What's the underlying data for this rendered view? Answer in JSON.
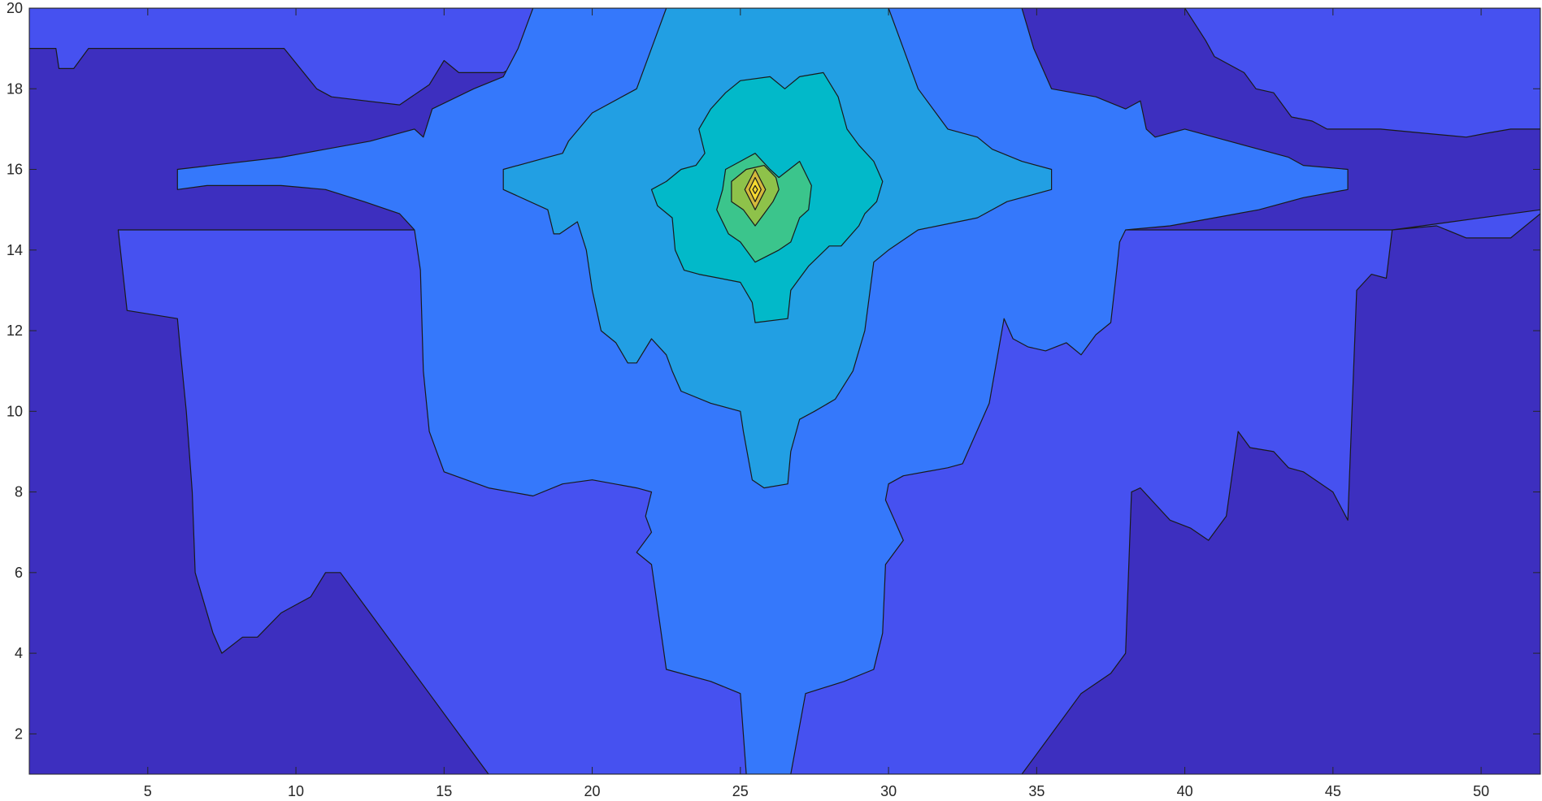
{
  "chart_data": {
    "type": "contour",
    "title": "",
    "xlabel": "",
    "ylabel": "",
    "xlim": [
      1,
      52
    ],
    "ylim": [
      1,
      20
    ],
    "x_ticks": [
      5,
      10,
      15,
      20,
      25,
      30,
      35,
      40,
      45,
      50
    ],
    "y_ticks": [
      2,
      4,
      6,
      8,
      10,
      12,
      14,
      16,
      18,
      20
    ],
    "x_tick_labels": [
      "5",
      "10",
      "15",
      "20",
      "25",
      "30",
      "35",
      "40",
      "45",
      "50"
    ],
    "y_tick_labels": [
      "2",
      "4",
      "6",
      "8",
      "10",
      "12",
      "14",
      "16",
      "18",
      "20"
    ],
    "grid": false,
    "colormap": "parula",
    "peak": {
      "x": 25.5,
      "y": 15.5
    },
    "level_colors": [
      "#3d2fbf",
      "#4651f0",
      "#3578fb",
      "#229fe3",
      "#02b9c9",
      "#3bc58c",
      "#8ec24a",
      "#d3b83b",
      "#f6d930"
    ],
    "regions": [
      {
        "level": 0,
        "points": [
          [
            1,
            1
          ],
          [
            52,
            1
          ],
          [
            52,
            20
          ],
          [
            1,
            20
          ]
        ]
      },
      {
        "level": 1,
        "points": [
          [
            4,
            14.5
          ],
          [
            4.3,
            12.5
          ],
          [
            6,
            12.3
          ],
          [
            6.1,
            11.5
          ],
          [
            6.3,
            10
          ],
          [
            6.5,
            8
          ],
          [
            6.6,
            6
          ],
          [
            6.8,
            5.5
          ],
          [
            7.2,
            4.5
          ],
          [
            7.5,
            4
          ],
          [
            8.2,
            4.4
          ],
          [
            8.7,
            4.4
          ],
          [
            9.5,
            5
          ],
          [
            10,
            5.2
          ],
          [
            10.5,
            5.4
          ],
          [
            11,
            6
          ],
          [
            11.5,
            6
          ],
          [
            12.5,
            5
          ],
          [
            13.5,
            4
          ],
          [
            14.5,
            3
          ],
          [
            15.5,
            2
          ],
          [
            16.5,
            1
          ],
          [
            34.5,
            1
          ],
          [
            35.5,
            2
          ],
          [
            36.5,
            3
          ],
          [
            37.5,
            3.5
          ],
          [
            38,
            4
          ],
          [
            38.2,
            8
          ],
          [
            38.5,
            8.1
          ],
          [
            39.5,
            7.3
          ],
          [
            40.2,
            7.1
          ],
          [
            40.8,
            6.8
          ],
          [
            41.4,
            7.4
          ],
          [
            41.8,
            9.5
          ],
          [
            42.2,
            9.1
          ],
          [
            43,
            9
          ],
          [
            43.5,
            8.6
          ],
          [
            44,
            8.5
          ],
          [
            45,
            8
          ],
          [
            45.5,
            7.3
          ],
          [
            45.8,
            13
          ],
          [
            46.3,
            13.4
          ],
          [
            46.8,
            13.3
          ],
          [
            47,
            14.5
          ],
          [
            48.5,
            14.6
          ],
          [
            49.5,
            14.3
          ],
          [
            51,
            14.3
          ],
          [
            52,
            14.9
          ],
          [
            52,
            20
          ],
          [
            1,
            20
          ],
          [
            1,
            19
          ],
          [
            1.9,
            19
          ],
          [
            2,
            18.5
          ],
          [
            2.5,
            18.5
          ],
          [
            3,
            19
          ],
          [
            9.6,
            19
          ],
          [
            10.7,
            18
          ],
          [
            11.2,
            17.8
          ],
          [
            13.5,
            17.6
          ],
          [
            14.5,
            18.1
          ],
          [
            15,
            18.7
          ],
          [
            15.5,
            18.4
          ],
          [
            17,
            18.4
          ],
          [
            17.7,
            18.7
          ],
          [
            18,
            20
          ],
          [
            40,
            20
          ],
          [
            40.7,
            19.2
          ],
          [
            41,
            18.8
          ],
          [
            42,
            18.4
          ],
          [
            42.4,
            18
          ],
          [
            43,
            17.9
          ],
          [
            43.6,
            17.3
          ],
          [
            44.3,
            17.2
          ],
          [
            44.8,
            17
          ],
          [
            46.6,
            17
          ],
          [
            49.5,
            16.8
          ],
          [
            50.2,
            16.9
          ],
          [
            51,
            17
          ],
          [
            52,
            17
          ],
          [
            52,
            15
          ],
          [
            47,
            14.5
          ],
          [
            41,
            14.5
          ],
          [
            37.5,
            14.5
          ],
          [
            4,
            14.5
          ]
        ]
      },
      {
        "level": 2,
        "points": [
          [
            6,
            16
          ],
          [
            9.5,
            16.3
          ],
          [
            11,
            16.5
          ],
          [
            12.5,
            16.7
          ],
          [
            14,
            17
          ],
          [
            14.3,
            16.8
          ],
          [
            14.6,
            17.5
          ],
          [
            16,
            18
          ],
          [
            17,
            18.3
          ],
          [
            17.5,
            19
          ],
          [
            18,
            20
          ],
          [
            34.5,
            20
          ],
          [
            34.9,
            19
          ],
          [
            35.5,
            18
          ],
          [
            37,
            17.8
          ],
          [
            38,
            17.5
          ],
          [
            38.5,
            17.7
          ],
          [
            38.7,
            17
          ],
          [
            39,
            16.8
          ],
          [
            40,
            17
          ],
          [
            41.5,
            16.7
          ],
          [
            42.5,
            16.5
          ],
          [
            43.5,
            16.3
          ],
          [
            44,
            16.1
          ],
          [
            45.5,
            16
          ],
          [
            45.5,
            15.5
          ],
          [
            44,
            15.3
          ],
          [
            42.5,
            15
          ],
          [
            41,
            14.8
          ],
          [
            39.5,
            14.6
          ],
          [
            38,
            14.5
          ],
          [
            37.8,
            14.2
          ],
          [
            37.7,
            13.5
          ],
          [
            37.5,
            12.2
          ],
          [
            37,
            11.9
          ],
          [
            36.5,
            11.4
          ],
          [
            36,
            11.7
          ],
          [
            35.3,
            11.5
          ],
          [
            34.7,
            11.6
          ],
          [
            34.2,
            11.8
          ],
          [
            33.9,
            12.3
          ],
          [
            33.4,
            10.2
          ],
          [
            32.5,
            8.7
          ],
          [
            32,
            8.6
          ],
          [
            30.5,
            8.4
          ],
          [
            30,
            8.2
          ],
          [
            29.9,
            7.8
          ],
          [
            30.2,
            7.3
          ],
          [
            30.5,
            6.8
          ],
          [
            29.9,
            6.2
          ],
          [
            29.8,
            4.5
          ],
          [
            29.5,
            3.6
          ],
          [
            28.5,
            3.3
          ],
          [
            27.2,
            3
          ],
          [
            26.7,
            1
          ],
          [
            25.2,
            1
          ],
          [
            25,
            3
          ],
          [
            24,
            3.3
          ],
          [
            22.5,
            3.6
          ],
          [
            22,
            6.2
          ],
          [
            21.5,
            6.5
          ],
          [
            22,
            7
          ],
          [
            21.8,
            7.4
          ],
          [
            22,
            8
          ],
          [
            21.5,
            8.1
          ],
          [
            20,
            8.3
          ],
          [
            19,
            8.2
          ],
          [
            18,
            7.9
          ],
          [
            16.5,
            8.1
          ],
          [
            15,
            8.5
          ],
          [
            14.8,
            8.9
          ],
          [
            14.5,
            9.5
          ],
          [
            14.3,
            11
          ],
          [
            14.2,
            13.5
          ],
          [
            14,
            14.5
          ],
          [
            13.5,
            14.9
          ],
          [
            12.3,
            15.2
          ],
          [
            11,
            15.5
          ],
          [
            9.5,
            15.6
          ],
          [
            7,
            15.6
          ],
          [
            6,
            15.5
          ]
        ]
      },
      {
        "level": 3,
        "points": [
          [
            17,
            16
          ],
          [
            18.5,
            16.3
          ],
          [
            19,
            16.4
          ],
          [
            19.2,
            16.7
          ],
          [
            20,
            17.4
          ],
          [
            21.5,
            18
          ],
          [
            22,
            19
          ],
          [
            22.5,
            20
          ],
          [
            30,
            20
          ],
          [
            30.5,
            19
          ],
          [
            31,
            18
          ],
          [
            32,
            17
          ],
          [
            33,
            16.8
          ],
          [
            33.5,
            16.5
          ],
          [
            34.5,
            16.2
          ],
          [
            35.5,
            16
          ],
          [
            35.5,
            15.5
          ],
          [
            34,
            15.2
          ],
          [
            33,
            14.8
          ],
          [
            31,
            14.5
          ],
          [
            30,
            14
          ],
          [
            29.5,
            13.7
          ],
          [
            29.2,
            12
          ],
          [
            28.8,
            11
          ],
          [
            28.2,
            10.3
          ],
          [
            27.5,
            10
          ],
          [
            27,
            9.8
          ],
          [
            26.7,
            9
          ],
          [
            26.6,
            8.2
          ],
          [
            25.8,
            8.1
          ],
          [
            25.4,
            8.3
          ],
          [
            25.1,
            9.5
          ],
          [
            25,
            10
          ],
          [
            24,
            10.2
          ],
          [
            23,
            10.5
          ],
          [
            22.7,
            11
          ],
          [
            22.5,
            11.4
          ],
          [
            22,
            11.8
          ],
          [
            21.5,
            11.2
          ],
          [
            21.2,
            11.2
          ],
          [
            20.8,
            11.7
          ],
          [
            20.3,
            12
          ],
          [
            20,
            13
          ],
          [
            19.8,
            14
          ],
          [
            19.5,
            14.7
          ],
          [
            18.9,
            14.4
          ],
          [
            18.7,
            14.4
          ],
          [
            18.5,
            15
          ],
          [
            17,
            15.5
          ]
        ]
      },
      {
        "level": 4,
        "points": [
          [
            22.5,
            15.7
          ],
          [
            23,
            16
          ],
          [
            23.5,
            16.1
          ],
          [
            23.8,
            16.4
          ],
          [
            23.6,
            17
          ],
          [
            24,
            17.5
          ],
          [
            24.5,
            17.9
          ],
          [
            25,
            18.2
          ],
          [
            26,
            18.3
          ],
          [
            26.5,
            18
          ],
          [
            27,
            18.3
          ],
          [
            27.8,
            18.4
          ],
          [
            28.3,
            17.8
          ],
          [
            28.6,
            17
          ],
          [
            29,
            16.6
          ],
          [
            29.5,
            16.2
          ],
          [
            29.8,
            15.7
          ],
          [
            29.6,
            15.2
          ],
          [
            29.2,
            14.9
          ],
          [
            29,
            14.6
          ],
          [
            28.4,
            14.1
          ],
          [
            28,
            14.1
          ],
          [
            27.3,
            13.6
          ],
          [
            27,
            13.3
          ],
          [
            26.7,
            13
          ],
          [
            26.6,
            12.3
          ],
          [
            25.5,
            12.2
          ],
          [
            25.4,
            12.7
          ],
          [
            25,
            13.2
          ],
          [
            24.3,
            13.3
          ],
          [
            23.6,
            13.4
          ],
          [
            23.1,
            13.5
          ],
          [
            22.8,
            14
          ],
          [
            22.7,
            14.8
          ],
          [
            22.2,
            15.1
          ],
          [
            22,
            15.5
          ]
        ]
      },
      {
        "level": 5,
        "points": [
          [
            24.4,
            15.5
          ],
          [
            24.5,
            16
          ],
          [
            25,
            16.2
          ],
          [
            25.5,
            16.4
          ],
          [
            26,
            16
          ],
          [
            26.3,
            15.8
          ],
          [
            27,
            16.2
          ],
          [
            27.4,
            15.6
          ],
          [
            27.3,
            15
          ],
          [
            27,
            14.8
          ],
          [
            26.7,
            14.2
          ],
          [
            26.3,
            14
          ],
          [
            25.5,
            13.7
          ],
          [
            25,
            14.2
          ],
          [
            24.6,
            14.4
          ],
          [
            24.2,
            15
          ]
        ]
      },
      {
        "level": 6,
        "points": [
          [
            24.7,
            15.7
          ],
          [
            25.2,
            16
          ],
          [
            25.8,
            16.1
          ],
          [
            26.2,
            15.8
          ],
          [
            26.3,
            15.5
          ],
          [
            26.1,
            15.2
          ],
          [
            25.8,
            14.9
          ],
          [
            25.5,
            14.6
          ],
          [
            25.1,
            15
          ],
          [
            24.7,
            15.2
          ]
        ]
      },
      {
        "level": 7,
        "points": [
          [
            25.5,
            16
          ],
          [
            25.85,
            15.5
          ],
          [
            25.5,
            15
          ],
          [
            25.15,
            15.5
          ]
        ]
      },
      {
        "level": 8,
        "points": [
          [
            25.5,
            15.8
          ],
          [
            25.7,
            15.5
          ],
          [
            25.5,
            15.2
          ],
          [
            25.3,
            15.5
          ]
        ]
      }
    ],
    "isolines": [
      {
        "points": [
          [
            25.5,
            15.6
          ],
          [
            25.58,
            15.5
          ],
          [
            25.5,
            15.4
          ],
          [
            25.42,
            15.5
          ]
        ]
      }
    ]
  }
}
